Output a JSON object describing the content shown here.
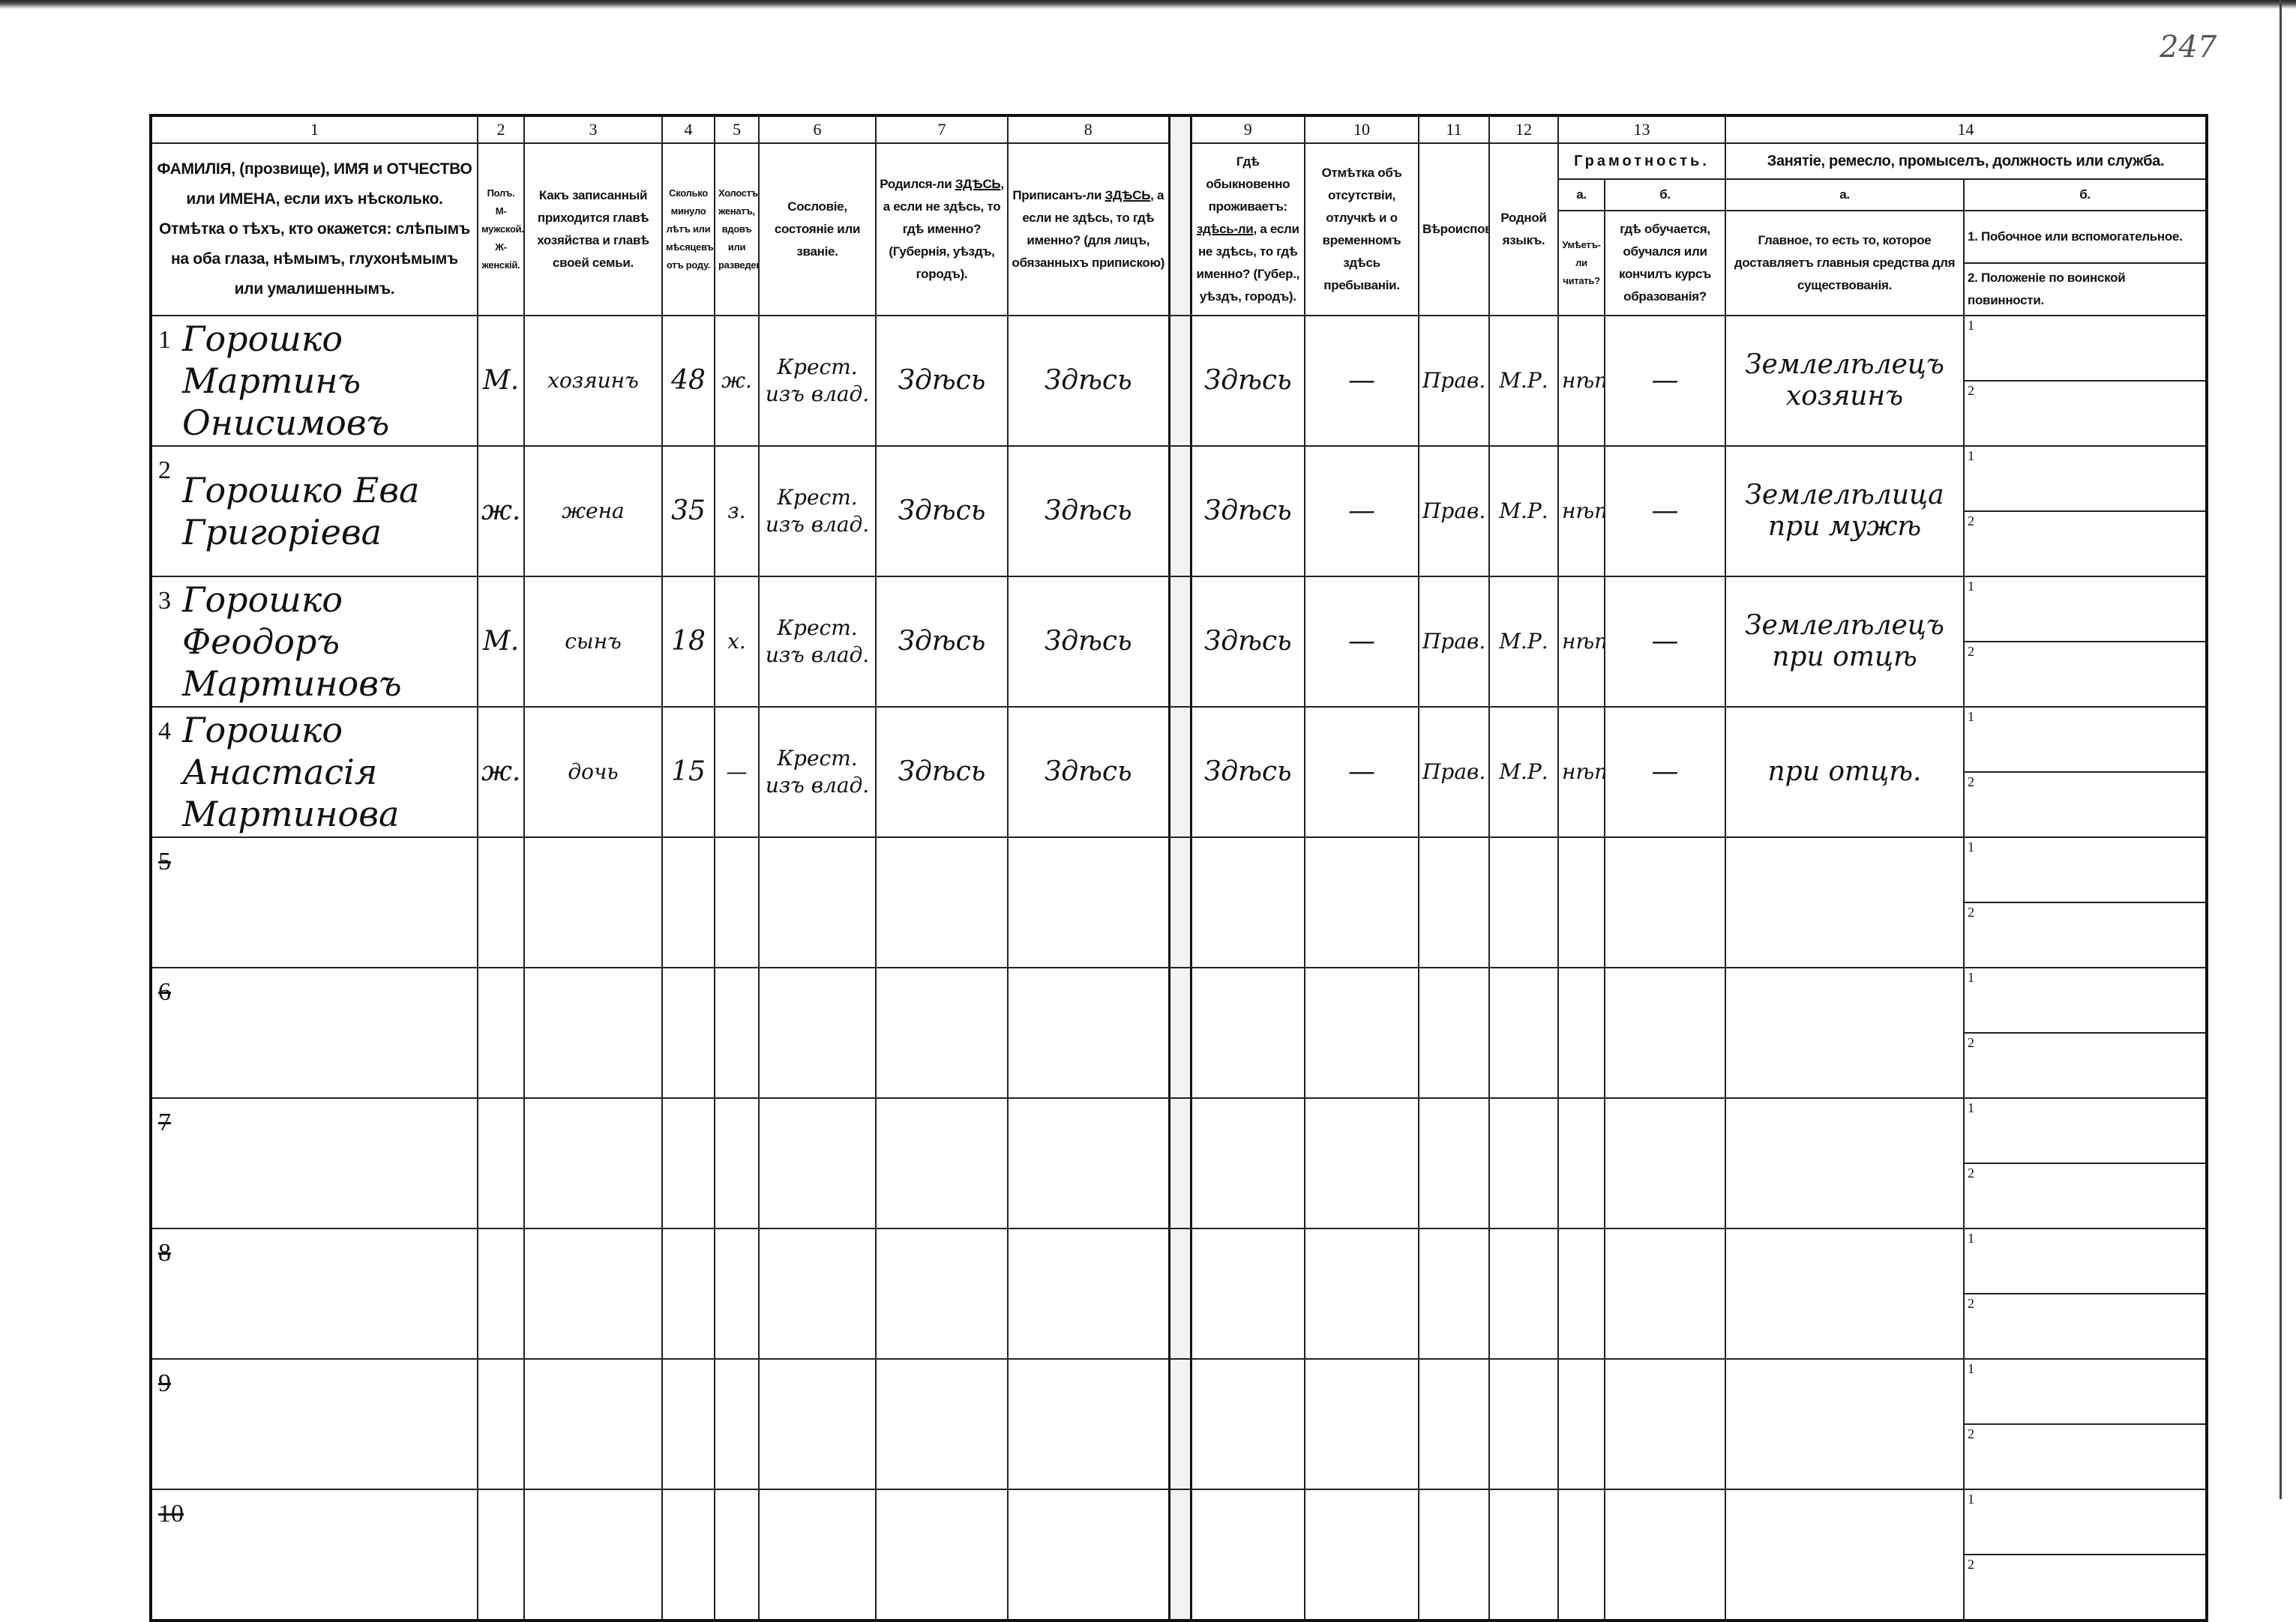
{
  "page_number": "247",
  "column_numbers": [
    "1",
    "2",
    "3",
    "4",
    "5",
    "6",
    "7",
    "8",
    "9",
    "10",
    "11",
    "12",
    "13",
    "14"
  ],
  "headers": {
    "c1": "ФАМИЛIЯ, (прозвище), ИМЯ и ОТЧЕСТВО или ИМЕНА, если ихъ нѣсколько. Отмѣтка о тѣхъ, кто окажется: слѣпымъ на оба глаза, нѣмымъ, глухонѣмымъ или умалишеннымъ.",
    "c2": "Полъ. М-мужской. Ж-женскiй.",
    "c3": "Какъ записанный приходится главѣ хозяйства и главѣ своей семьи.",
    "c4": "Сколько минуло лѣтъ или мѣсяцевъ отъ роду.",
    "c5": "Холостъ, женатъ, вдовъ или разведенъ.",
    "c6": "Сословiе, состоянiе или званiе.",
    "c7_a": "Родился-ли ",
    "c7_u": "ЗДѢСЬ",
    "c7_b": ", а если не здѣсь, то гдѣ именно? (Губернiя, уѣздъ, городъ).",
    "c8_a": "Приписанъ-ли ",
    "c8_u": "ЗДѢСЬ",
    "c8_b": ", а если не здѣсь, то гдѣ именно? (для лицъ, обязанныхъ припискою)",
    "c9_a": "Гдѣ обыкновенно проживаетъ: ",
    "c9_u": "здѣсь-ли",
    "c9_b": ", а если не здѣсь, то гдѣ именно? (Губер., уѣздъ, городъ).",
    "c10": "Отмѣтка объ отсутствiи, отлучкѣ и о временномъ здѣсь пребыванiи.",
    "c11": "Вѣроисповѣданiе.",
    "c12": "Родной языкъ.",
    "c13_title": "Грамотность.",
    "c13_a": "а.",
    "c13_b": "б.",
    "c13_a_text": "Умѣетъ-ли читать?",
    "c13_b_text": "гдѣ обучается, обучался или кончилъ курсъ образованiя?",
    "c14_title": "Занятiе, ремесло, промыселъ, должность или служба.",
    "c14_a": "а.",
    "c14_b": "б.",
    "c14_a_text": "Главное, то есть то, которое доставляетъ главныя средства для существованiя.",
    "c14_b_1": "1. Побочное или вспомогательное.",
    "c14_b_2": "2. Положенiе по воинской повинности."
  },
  "sub_labels": [
    "1",
    "2"
  ],
  "rows": [
    {
      "n": "1",
      "name": "Горошко Мартинъ Онисимовъ",
      "sex": "М.",
      "relation": "хозяинъ",
      "age": "48",
      "marital": "ж.",
      "estate": "Крест. изъ влад.",
      "born": "Здѣсь",
      "registered": "Здѣсь",
      "resides": "Здѣсь",
      "absence": "—",
      "religion": "Прав.",
      "language": "М.Р.",
      "literate": "нѣтъ",
      "education": "—",
      "occupation": "Землелѣлецъ хозяинъ"
    },
    {
      "n": "2",
      "name": "Горошко Ева Григорiева",
      "sex": "ж.",
      "relation": "жена",
      "age": "35",
      "marital": "з.",
      "estate": "Крест. изъ влад.",
      "born": "Здѣсь",
      "registered": "Здѣсь",
      "resides": "Здѣсь",
      "absence": "—",
      "religion": "Прав.",
      "language": "М.Р.",
      "literate": "нѣтъ",
      "education": "—",
      "occupation": "Землелѣлица при мужѣ"
    },
    {
      "n": "3",
      "name": "Горошко Феодоръ Мартиновъ",
      "sex": "М.",
      "relation": "сынъ",
      "age": "18",
      "marital": "х.",
      "estate": "Крест. изъ влад.",
      "born": "Здѣсь",
      "registered": "Здѣсь",
      "resides": "Здѣсь",
      "absence": "—",
      "religion": "Прав.",
      "language": "М.Р.",
      "literate": "нѣтъ",
      "education": "—",
      "occupation": "Землелѣлецъ при отцѣ"
    },
    {
      "n": "4",
      "name": "Горошко Анастасiя Мартинова",
      "sex": "ж.",
      "relation": "дочь",
      "age": "15",
      "marital": "—",
      "estate": "Крест. изъ влад.",
      "born": "Здѣсь",
      "registered": "Здѣсь",
      "resides": "Здѣсь",
      "absence": "—",
      "religion": "Прав.",
      "language": "М.Р.",
      "literate": "нѣтъ",
      "education": "—",
      "occupation": "при отцѣ."
    }
  ],
  "empty_rows": [
    "5",
    "6",
    "7",
    "8",
    "9",
    "10"
  ]
}
